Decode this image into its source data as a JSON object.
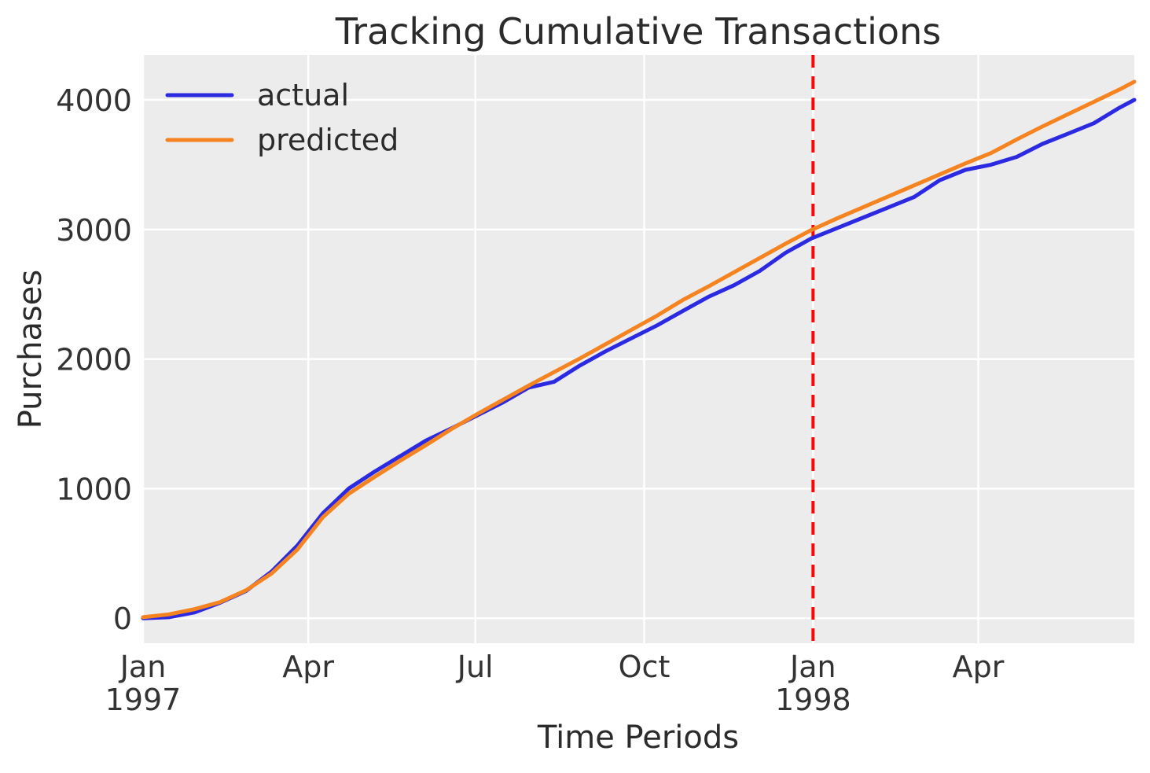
{
  "title": "Tracking Cumulative Transactions",
  "chart_data": {
    "type": "line",
    "title": "Tracking Cumulative Transactions",
    "xlabel": "Time Periods",
    "ylabel": "Purchases",
    "grid": true,
    "legend_position": "upper left",
    "plot_bg_color": "#ececec",
    "grid_color": "#ffffff",
    "xlim": [
      "1997-01-01",
      "1998-06-25"
    ],
    "ylim": [
      -193,
      4346
    ],
    "y_ticks": [
      0,
      1000,
      2000,
      3000,
      4000
    ],
    "x_ticks": [
      {
        "label": "Jan",
        "sublabel": "1997",
        "date": "1997-01-01"
      },
      {
        "label": "Apr",
        "sublabel": "",
        "date": "1997-04-01"
      },
      {
        "label": "Jul",
        "sublabel": "",
        "date": "1997-07-01"
      },
      {
        "label": "Oct",
        "sublabel": "",
        "date": "1997-10-01"
      },
      {
        "label": "Jan",
        "sublabel": "1998",
        "date": "1998-01-01"
      },
      {
        "label": "Apr",
        "sublabel": "",
        "date": "1998-04-01"
      }
    ],
    "x_dates": [
      "1997-01-01",
      "1997-01-15",
      "1997-01-29",
      "1997-02-12",
      "1997-02-26",
      "1997-03-12",
      "1997-03-26",
      "1997-04-09",
      "1997-04-23",
      "1997-05-07",
      "1997-05-21",
      "1997-06-04",
      "1997-06-18",
      "1997-07-02",
      "1997-07-16",
      "1997-07-30",
      "1997-08-13",
      "1997-08-27",
      "1997-09-10",
      "1997-09-24",
      "1997-10-08",
      "1997-10-22",
      "1997-11-05",
      "1997-11-19",
      "1997-12-03",
      "1997-12-17",
      "1997-12-31",
      "1998-01-14",
      "1998-01-28",
      "1998-02-11",
      "1998-02-25",
      "1998-03-11",
      "1998-03-25",
      "1998-04-08",
      "1998-04-22",
      "1998-05-06",
      "1998-05-20",
      "1998-06-03",
      "1998-06-17",
      "1998-06-25"
    ],
    "series": [
      {
        "name": "actual",
        "color": "#2b2ae0",
        "values": [
          0,
          8,
          45,
          120,
          210,
          360,
          560,
          810,
          1000,
          1130,
          1250,
          1370,
          1465,
          1565,
          1665,
          1780,
          1825,
          1950,
          2060,
          2160,
          2260,
          2370,
          2480,
          2570,
          2680,
          2820,
          2930,
          3010,
          3090,
          3170,
          3250,
          3380,
          3460,
          3500,
          3560,
          3660,
          3740,
          3820,
          3940,
          4000
        ]
      },
      {
        "name": "predicted",
        "color": "#f5831f",
        "values": [
          8,
          30,
          70,
          125,
          215,
          345,
          530,
          780,
          960,
          1090,
          1215,
          1335,
          1460,
          1575,
          1685,
          1795,
          1900,
          2005,
          2115,
          2225,
          2335,
          2455,
          2560,
          2670,
          2780,
          2890,
          2995,
          3085,
          3170,
          3255,
          3340,
          3425,
          3510,
          3590,
          3695,
          3795,
          3890,
          3985,
          4080,
          4140
        ]
      }
    ],
    "annotations": [
      {
        "type": "vline",
        "date": "1998-01-01",
        "color": "#f90606",
        "style": "dashed",
        "meaning": "calibration-period-end"
      }
    ]
  }
}
